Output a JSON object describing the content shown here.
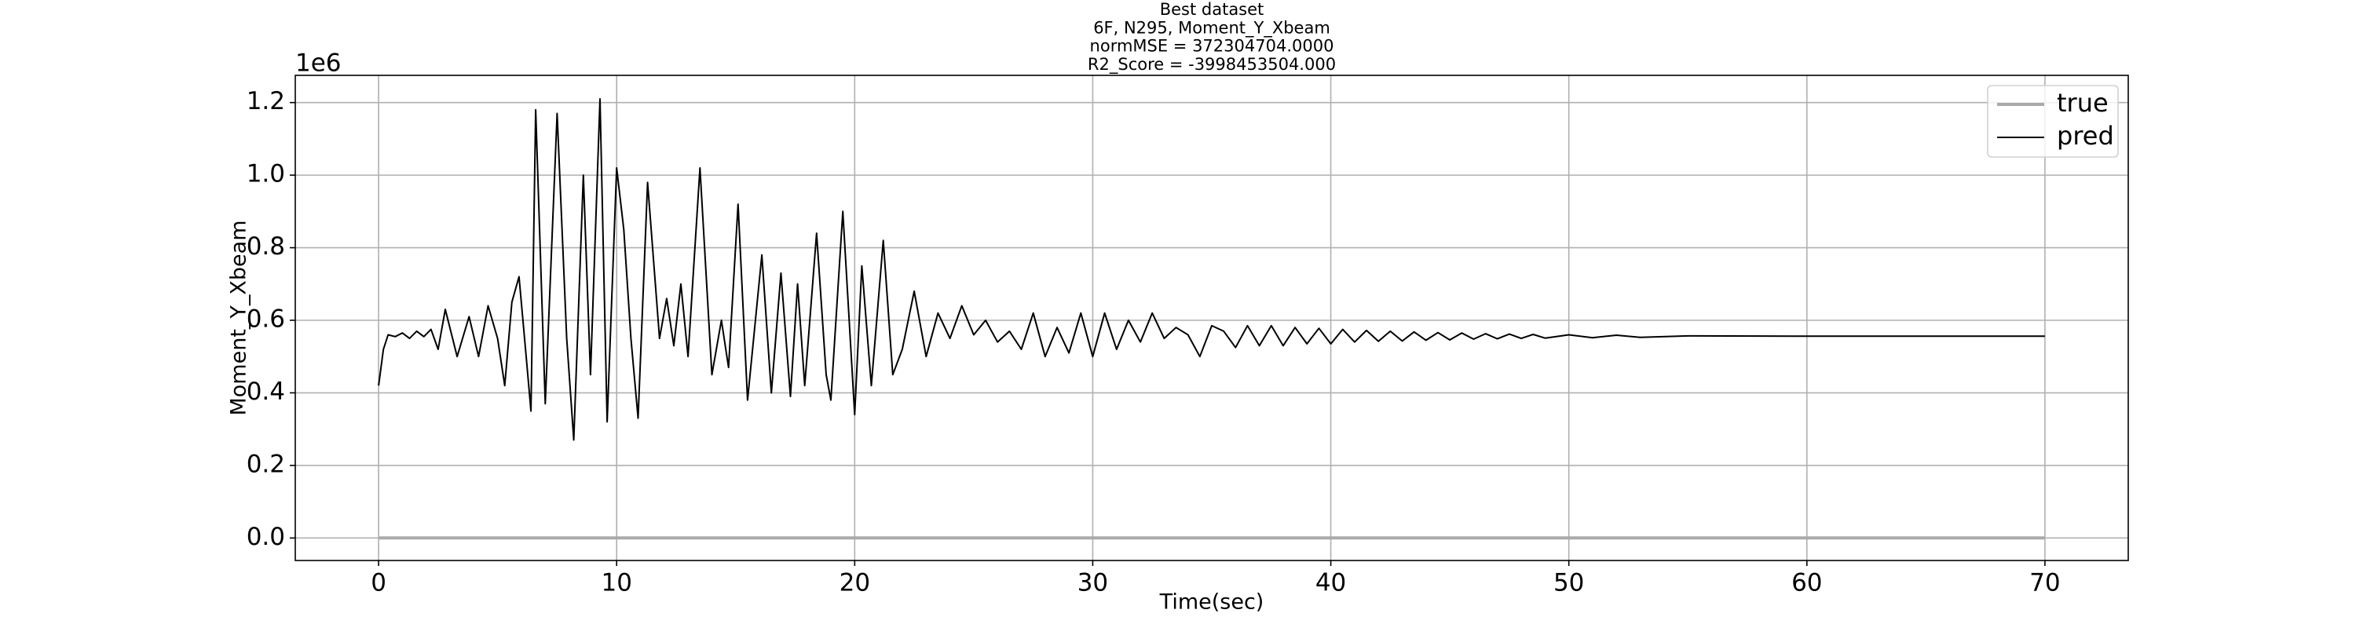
{
  "chart_data": {
    "type": "line",
    "title": [
      "Best dataset",
      "6F, N295, Moment_Y_Xbeam",
      "normMSE = 372304704.0000",
      "R2_Score = -3998453504.000"
    ],
    "xlabel": "Time(sec)",
    "ylabel": "Moment_Y_Xbeam",
    "y_offset_label": "1e6",
    "xlim": [
      -3.5,
      73.5
    ],
    "ylim": [
      -62000,
      1275000
    ],
    "xticks": [
      0,
      10,
      20,
      30,
      40,
      50,
      60,
      70
    ],
    "yticks": [
      {
        "value": 0,
        "label": "0.0"
      },
      {
        "value": 200000,
        "label": "0.2"
      },
      {
        "value": 400000,
        "label": "0.4"
      },
      {
        "value": 600000,
        "label": "0.6"
      },
      {
        "value": 800000,
        "label": "0.8"
      },
      {
        "value": 1000000,
        "label": "1.0"
      },
      {
        "value": 1200000,
        "label": "1.2"
      }
    ],
    "grid": true,
    "legend": "upper right",
    "series": [
      {
        "name": "true",
        "color": "#aaaaaa",
        "x": [
          0,
          70
        ],
        "values": [
          0,
          0
        ]
      },
      {
        "name": "pred",
        "color": "#000000",
        "x": [
          0,
          0.2,
          0.4,
          0.7,
          1.0,
          1.3,
          1.6,
          1.9,
          2.2,
          2.5,
          2.8,
          3.3,
          3.8,
          4.2,
          4.6,
          5.0,
          5.3,
          5.6,
          5.9,
          6.2,
          6.4,
          6.6,
          7.0,
          7.5,
          7.9,
          8.2,
          8.6,
          8.9,
          9.3,
          9.6,
          10.0,
          10.3,
          10.6,
          10.9,
          11.3,
          11.8,
          12.1,
          12.4,
          12.7,
          13.0,
          13.5,
          14.0,
          14.4,
          14.7,
          15.1,
          15.5,
          16.1,
          16.5,
          16.9,
          17.3,
          17.6,
          17.9,
          18.4,
          18.8,
          19.0,
          19.5,
          20.0,
          20.3,
          20.7,
          21.2,
          21.6,
          22.0,
          22.5,
          23.0,
          23.5,
          24.0,
          24.5,
          25.0,
          25.5,
          26.0,
          26.5,
          27.0,
          27.5,
          28.0,
          28.5,
          29.0,
          29.5,
          30.0,
          30.5,
          31.0,
          31.5,
          32.0,
          32.5,
          33.0,
          33.5,
          34.0,
          34.5,
          35.0,
          35.5,
          36.0,
          36.5,
          37.0,
          37.5,
          38.0,
          38.5,
          39.0,
          39.5,
          40.0,
          40.5,
          41.0,
          41.5,
          42.0,
          42.5,
          43.0,
          43.5,
          44.0,
          44.5,
          45.0,
          45.5,
          46.0,
          46.5,
          47.0,
          47.5,
          48.0,
          48.5,
          49.0,
          50.0,
          51.0,
          52.0,
          53.0,
          55.0,
          60.0,
          70.0
        ],
        "values": [
          420000,
          520000,
          560000,
          555000,
          565000,
          550000,
          570000,
          555000,
          575000,
          520000,
          630000,
          500000,
          610000,
          500000,
          640000,
          550000,
          420000,
          650000,
          720000,
          500000,
          350000,
          1180000,
          370000,
          1170000,
          550000,
          270000,
          1000000,
          450000,
          1210000,
          320000,
          1020000,
          850000,
          550000,
          330000,
          980000,
          550000,
          660000,
          530000,
          700000,
          500000,
          1020000,
          450000,
          600000,
          470000,
          920000,
          380000,
          780000,
          400000,
          730000,
          390000,
          700000,
          420000,
          840000,
          450000,
          380000,
          900000,
          340000,
          750000,
          420000,
          820000,
          450000,
          520000,
          680000,
          500000,
          620000,
          550000,
          640000,
          560000,
          600000,
          540000,
          570000,
          520000,
          620000,
          500000,
          580000,
          510000,
          620000,
          500000,
          620000,
          520000,
          600000,
          540000,
          620000,
          550000,
          580000,
          560000,
          500000,
          585000,
          570000,
          525000,
          585000,
          530000,
          585000,
          530000,
          580000,
          535000,
          578000,
          535000,
          575000,
          540000,
          572000,
          542000,
          570000,
          543000,
          568000,
          545000,
          566000,
          546000,
          565000,
          548000,
          563000,
          549000,
          562000,
          550000,
          561000,
          551000,
          560000,
          552000,
          559000,
          553000,
          557000,
          556000,
          556000
        ]
      }
    ]
  }
}
